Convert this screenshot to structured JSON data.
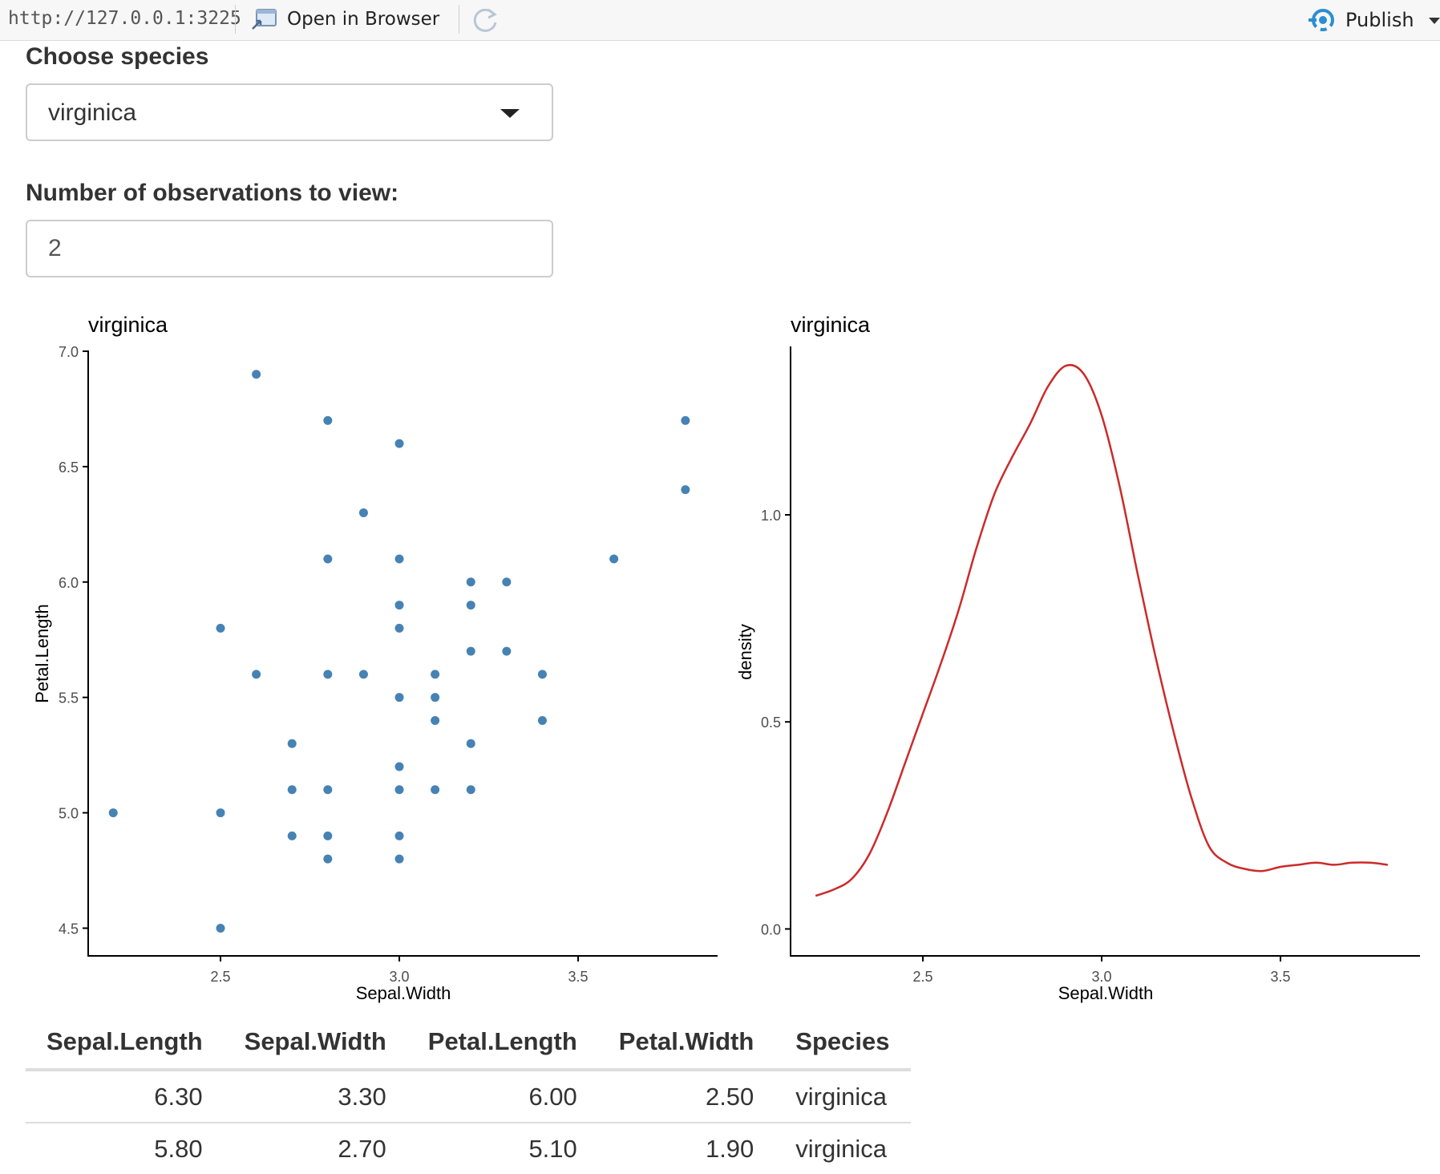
{
  "toolbar": {
    "url": "http://127.0.0.1:3225",
    "open_in_browser_label": "Open in Browser",
    "publish_label": "Publish",
    "icons": {
      "open": "open-in-browser-icon",
      "refresh": "refresh-icon",
      "publish": "publish-icon"
    },
    "publish_color": "#2a8fd1"
  },
  "controls": {
    "species_label": "Choose species",
    "species_value": "virginica",
    "obs_label": "Number of observations to view:",
    "obs_value": "2"
  },
  "chart_data": [
    {
      "type": "scatter",
      "title": "virginica",
      "xlabel": "Sepal.Width",
      "ylabel": "Petal.Length",
      "xlim": [
        2.13,
        3.89
      ],
      "ylim": [
        4.38,
        7.0
      ],
      "xticks": [
        "2.5",
        "3.0",
        "3.5"
      ],
      "yticks": [
        "4.5",
        "5.0",
        "5.5",
        "6.0",
        "6.5",
        "7.0"
      ],
      "point_color": "#4682b4",
      "grid": false,
      "points": [
        [
          2.2,
          5.0
        ],
        [
          2.5,
          5.8
        ],
        [
          2.5,
          5.0
        ],
        [
          2.5,
          4.5
        ],
        [
          2.6,
          6.9
        ],
        [
          2.6,
          5.6
        ],
        [
          2.7,
          5.3
        ],
        [
          2.7,
          5.1
        ],
        [
          2.7,
          4.9
        ],
        [
          2.8,
          6.7
        ],
        [
          2.8,
          6.1
        ],
        [
          2.8,
          5.6
        ],
        [
          2.8,
          5.1
        ],
        [
          2.8,
          4.9
        ],
        [
          2.8,
          4.8
        ],
        [
          2.9,
          6.3
        ],
        [
          2.9,
          5.6
        ],
        [
          3.0,
          6.6
        ],
        [
          3.0,
          6.1
        ],
        [
          3.0,
          5.9
        ],
        [
          3.0,
          5.8
        ],
        [
          3.0,
          5.5
        ],
        [
          3.0,
          5.2
        ],
        [
          3.0,
          5.1
        ],
        [
          3.0,
          4.9
        ],
        [
          3.0,
          4.8
        ],
        [
          3.1,
          5.6
        ],
        [
          3.1,
          5.5
        ],
        [
          3.1,
          5.4
        ],
        [
          3.1,
          5.1
        ],
        [
          3.2,
          6.0
        ],
        [
          3.2,
          5.9
        ],
        [
          3.2,
          5.7
        ],
        [
          3.2,
          5.3
        ],
        [
          3.2,
          5.1
        ],
        [
          3.3,
          6.0
        ],
        [
          3.3,
          5.7
        ],
        [
          3.4,
          5.6
        ],
        [
          3.4,
          5.4
        ],
        [
          3.6,
          6.1
        ],
        [
          3.8,
          6.7
        ],
        [
          3.8,
          6.4
        ]
      ]
    },
    {
      "type": "line",
      "title": "virginica",
      "xlabel": "Sepal.Width",
      "ylabel": "density",
      "xlim": [
        2.13,
        3.89
      ],
      "ylim": [
        -0.065,
        1.395
      ],
      "xticks": [
        "2.5",
        "3.0",
        "3.5"
      ],
      "yticks": [
        "0.0",
        "0.5",
        "1.0"
      ],
      "line_color": "#cc2a2a",
      "grid": false,
      "x": [
        2.2,
        2.25,
        2.3,
        2.35,
        2.4,
        2.45,
        2.5,
        2.55,
        2.6,
        2.65,
        2.7,
        2.75,
        2.8,
        2.85,
        2.9,
        2.95,
        3.0,
        3.05,
        3.1,
        3.15,
        3.2,
        3.25,
        3.3,
        3.35,
        3.4,
        3.45,
        3.5,
        3.55,
        3.6,
        3.65,
        3.7,
        3.75,
        3.8
      ],
      "y": [
        0.08,
        0.095,
        0.12,
        0.18,
        0.28,
        0.4,
        0.52,
        0.64,
        0.77,
        0.92,
        1.05,
        1.14,
        1.22,
        1.31,
        1.36,
        1.34,
        1.24,
        1.07,
        0.86,
        0.66,
        0.48,
        0.32,
        0.2,
        0.16,
        0.145,
        0.14,
        0.15,
        0.155,
        0.16,
        0.155,
        0.16,
        0.16,
        0.155
      ]
    }
  ],
  "table": {
    "columns": [
      "Sepal.Length",
      "Sepal.Width",
      "Petal.Length",
      "Petal.Width",
      "Species"
    ],
    "rows": [
      [
        "6.30",
        "3.30",
        "6.00",
        "2.50",
        "virginica"
      ],
      [
        "5.80",
        "2.70",
        "5.10",
        "1.90",
        "virginica"
      ]
    ]
  }
}
